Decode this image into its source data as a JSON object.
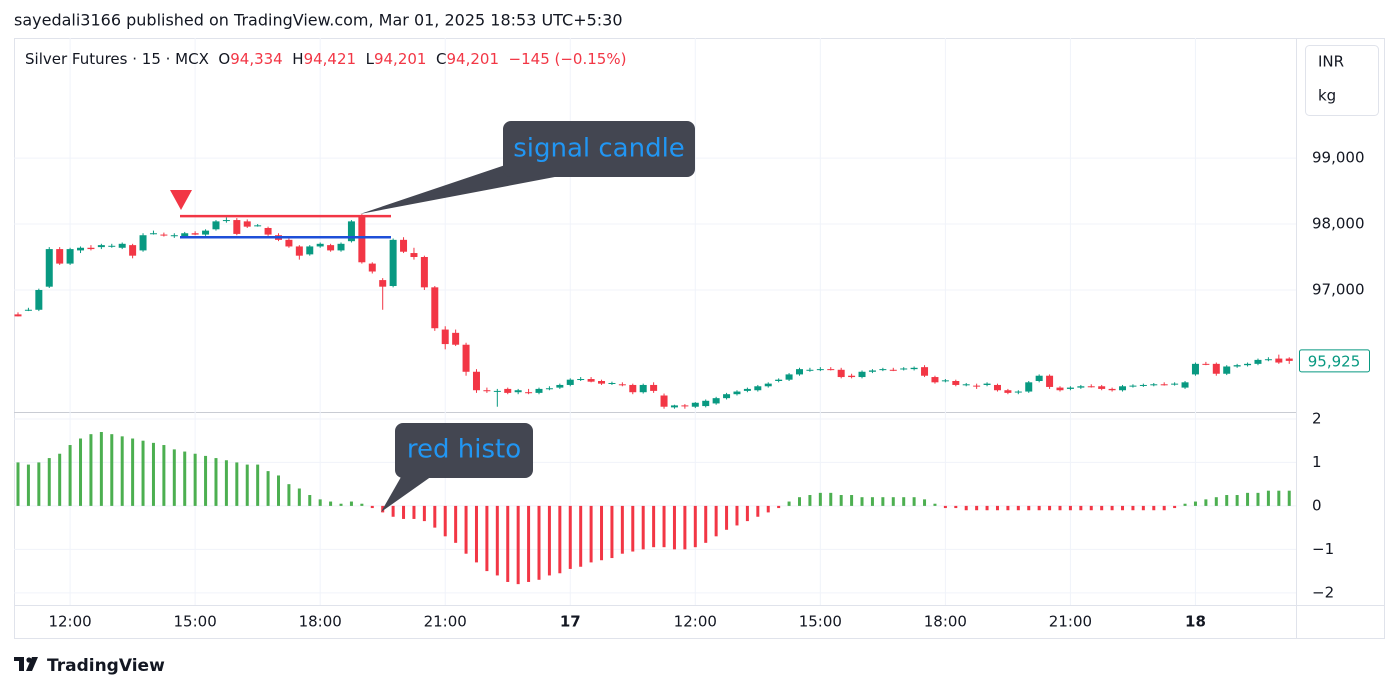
{
  "header": {
    "published": "sayedali3166 published on TradingView.com, Mar 01, 2025 18:53 UTC+5:30",
    "symbol": "Silver Futures · 15 · MCX",
    "ohlc": [
      [
        "O",
        "94,334"
      ],
      [
        "H",
        "94,421"
      ],
      [
        "L",
        "94,201"
      ],
      [
        "C",
        "94,201"
      ]
    ],
    "change": "−145 (−0.15%)"
  },
  "footer": {
    "brand": "TradingView"
  },
  "chart_data": [
    {
      "type": "candlestick",
      "up_color": "#089981",
      "down_color": "#f23645",
      "currency": "INR",
      "unit": "kg",
      "ylim": [
        95150,
        100790
      ],
      "yticks": [
        {
          "value": 97000,
          "label": "97,000"
        },
        {
          "value": 98000,
          "label": "98,000"
        },
        {
          "value": 99000,
          "label": "99,000"
        }
      ],
      "grid": true,
      "last_price": {
        "value": 95925,
        "label": "95,925"
      },
      "hlines": [
        {
          "value": 98120,
          "color": "#f23645"
        },
        {
          "value": 97800,
          "color": "#1e4fd8"
        }
      ],
      "annotations": [
        "signal candle"
      ],
      "ohlc": [
        [
          96630,
          96660,
          96600,
          96600
        ],
        [
          96700,
          96730,
          96680,
          96700
        ],
        [
          96700,
          97020,
          96680,
          97000
        ],
        [
          97050,
          97650,
          97030,
          97620
        ],
        [
          97620,
          97650,
          97380,
          97400
        ],
        [
          97400,
          97640,
          97380,
          97620
        ],
        [
          97600,
          97660,
          97560,
          97640
        ],
        [
          97640,
          97680,
          97600,
          97620
        ],
        [
          97650,
          97700,
          97620,
          97680
        ],
        [
          97660,
          97700,
          97640,
          97670
        ],
        [
          97640,
          97720,
          97620,
          97700
        ],
        [
          97680,
          97700,
          97480,
          97520
        ],
        [
          97600,
          97860,
          97580,
          97830
        ],
        [
          97850,
          97900,
          97840,
          97860
        ],
        [
          97840,
          97870,
          97810,
          97830
        ],
        [
          97820,
          97860,
          97790,
          97830
        ],
        [
          97810,
          97880,
          97790,
          97860
        ],
        [
          97860,
          97890,
          97830,
          97840
        ],
        [
          97840,
          97920,
          97820,
          97900
        ],
        [
          97920,
          98060,
          97900,
          98040
        ],
        [
          98050,
          98100,
          98020,
          98060
        ],
        [
          98060,
          98090,
          97830,
          97850
        ],
        [
          98040,
          98070,
          97940,
          97960
        ],
        [
          97980,
          98000,
          97960,
          97980
        ],
        [
          97940,
          97960,
          97820,
          97840
        ],
        [
          97830,
          97860,
          97740,
          97760
        ],
        [
          97760,
          97780,
          97640,
          97660
        ],
        [
          97660,
          97680,
          97460,
          97520
        ],
        [
          97540,
          97680,
          97520,
          97660
        ],
        [
          97660,
          97720,
          97640,
          97700
        ],
        [
          97680,
          97700,
          97580,
          97600
        ],
        [
          97600,
          97720,
          97580,
          97700
        ],
        [
          97740,
          98060,
          97720,
          98040
        ],
        [
          98120,
          98150,
          97400,
          97420
        ],
        [
          97400,
          97420,
          97250,
          97280
        ],
        [
          97150,
          97180,
          96700,
          97050
        ],
        [
          97060,
          97780,
          97040,
          97760
        ],
        [
          97760,
          97800,
          97560,
          97580
        ],
        [
          97560,
          97640,
          97460,
          97500
        ],
        [
          97500,
          97520,
          97000,
          97040
        ],
        [
          97040,
          97060,
          96380,
          96420
        ],
        [
          96400,
          96450,
          96100,
          96180
        ],
        [
          96350,
          96400,
          96150,
          96170
        ],
        [
          96170,
          96200,
          95700,
          95760
        ],
        [
          95760,
          95800,
          95440,
          95480
        ],
        [
          95480,
          95520,
          95440,
          95470
        ],
        [
          95460,
          95500,
          95230,
          95470
        ],
        [
          95500,
          95520,
          95420,
          95440
        ],
        [
          95450,
          95500,
          95420,
          95480
        ],
        [
          95450,
          95500,
          95420,
          95440
        ],
        [
          95440,
          95520,
          95420,
          95500
        ],
        [
          95500,
          95540,
          95480,
          95510
        ],
        [
          95520,
          95580,
          95500,
          95560
        ],
        [
          95560,
          95660,
          95540,
          95640
        ],
        [
          95640,
          95680,
          95620,
          95650
        ],
        [
          95650,
          95680,
          95600,
          95610
        ],
        [
          95620,
          95640,
          95560,
          95580
        ],
        [
          95580,
          95610,
          95560,
          95590
        ],
        [
          95570,
          95600,
          95540,
          95560
        ],
        [
          95560,
          95580,
          95420,
          95450
        ],
        [
          95450,
          95580,
          95430,
          95560
        ],
        [
          95560,
          95600,
          95440,
          95470
        ],
        [
          95400,
          95430,
          95200,
          95230
        ],
        [
          95220,
          95260,
          95200,
          95250
        ],
        [
          95250,
          95270,
          95200,
          95240
        ],
        [
          95230,
          95300,
          95210,
          95290
        ],
        [
          95240,
          95340,
          95220,
          95320
        ],
        [
          95280,
          95380,
          95260,
          95360
        ],
        [
          95360,
          95440,
          95340,
          95420
        ],
        [
          95420,
          95480,
          95400,
          95460
        ],
        [
          95470,
          95520,
          95450,
          95500
        ],
        [
          95480,
          95560,
          95460,
          95540
        ],
        [
          95540,
          95600,
          95520,
          95580
        ],
        [
          95620,
          95660,
          95600,
          95640
        ],
        [
          95640,
          95740,
          95620,
          95720
        ],
        [
          95720,
          95820,
          95700,
          95800
        ],
        [
          95780,
          95820,
          95760,
          95790
        ],
        [
          95790,
          95830,
          95770,
          95800
        ],
        [
          95800,
          95830,
          95780,
          95790
        ],
        [
          95790,
          95820,
          95660,
          95680
        ],
        [
          95700,
          95730,
          95660,
          95680
        ],
        [
          95680,
          95780,
          95660,
          95760
        ],
        [
          95760,
          95800,
          95740,
          95780
        ],
        [
          95790,
          95820,
          95770,
          95800
        ],
        [
          95790,
          95820,
          95770,
          95780
        ],
        [
          95800,
          95830,
          95780,
          95810
        ],
        [
          95800,
          95840,
          95780,
          95820
        ],
        [
          95830,
          95860,
          95680,
          95700
        ],
        [
          95680,
          95700,
          95580,
          95600
        ],
        [
          95620,
          95650,
          95600,
          95630
        ],
        [
          95620,
          95640,
          95540,
          95560
        ],
        [
          95560,
          95590,
          95540,
          95570
        ],
        [
          95550,
          95580,
          95500,
          95540
        ],
        [
          95560,
          95600,
          95540,
          95580
        ],
        [
          95560,
          95580,
          95460,
          95480
        ],
        [
          95480,
          95500,
          95420,
          95440
        ],
        [
          95450,
          95480,
          95420,
          95460
        ],
        [
          95460,
          95620,
          95440,
          95600
        ],
        [
          95620,
          95720,
          95600,
          95700
        ],
        [
          95700,
          95720,
          95500,
          95530
        ],
        [
          95520,
          95540,
          95460,
          95480
        ],
        [
          95500,
          95540,
          95480,
          95520
        ],
        [
          95520,
          95560,
          95500,
          95540
        ],
        [
          95540,
          95570,
          95520,
          95530
        ],
        [
          95540,
          95560,
          95480,
          95500
        ],
        [
          95500,
          95520,
          95460,
          95480
        ],
        [
          95480,
          95560,
          95460,
          95540
        ],
        [
          95540,
          95570,
          95520,
          95550
        ],
        [
          95550,
          95580,
          95530,
          95560
        ],
        [
          95560,
          95590,
          95540,
          95570
        ],
        [
          95570,
          95600,
          95550,
          95560
        ],
        [
          95570,
          95600,
          95550,
          95580
        ],
        [
          95520,
          95620,
          95500,
          95600
        ],
        [
          95720,
          95900,
          95700,
          95880
        ],
        [
          95880,
          95910,
          95860,
          95870
        ],
        [
          95880,
          95900,
          95700,
          95730
        ],
        [
          95730,
          95860,
          95710,
          95840
        ],
        [
          95840,
          95880,
          95820,
          95860
        ],
        [
          95860,
          95900,
          95840,
          95880
        ],
        [
          95880,
          95960,
          95860,
          95940
        ],
        [
          95940,
          95980,
          95920,
          95950
        ],
        [
          95960,
          96020,
          95880,
          95900
        ],
        [
          95960,
          95980,
          95880,
          95925
        ]
      ]
    },
    {
      "type": "bar",
      "positive_color": "#4caf50",
      "negative_color": "#f23645",
      "ylim": [
        -2.28,
        2.16
      ],
      "yticks": [
        2,
        1,
        0,
        {
          "value": -1,
          "label": "−1"
        },
        {
          "value": -2,
          "label": "−2"
        }
      ],
      "grid": true,
      "annotations": [
        "red histo"
      ],
      "categories": [
        null,
        null,
        null,
        null,
        null,
        "12:00",
        null,
        null,
        null,
        null,
        null,
        null,
        null,
        null,
        null,
        null,
        null,
        "15:00",
        null,
        null,
        null,
        null,
        null,
        null,
        null,
        null,
        null,
        null,
        null,
        "18:00",
        null,
        null,
        null,
        null,
        null,
        null,
        null,
        null,
        null,
        null,
        null,
        "21:00",
        null,
        null,
        null,
        null,
        null,
        null,
        null,
        null,
        null,
        null,
        null,
        "17",
        null,
        null,
        null,
        null,
        null,
        null,
        null,
        null,
        null,
        null,
        null,
        "12:00",
        null,
        null,
        null,
        null,
        null,
        null,
        null,
        null,
        null,
        null,
        null,
        "15:00",
        null,
        null,
        null,
        null,
        null,
        null,
        null,
        null,
        null,
        null,
        null,
        "18:00",
        null,
        null,
        null,
        null,
        null,
        null,
        null,
        null,
        null,
        null,
        null,
        "21:00",
        null,
        null,
        null,
        null,
        null,
        null,
        null,
        null,
        null,
        null,
        null,
        "18",
        null,
        null,
        null,
        null,
        null,
        null,
        null,
        null,
        null
      ],
      "values": [
        1.0,
        0.95,
        1.0,
        1.1,
        1.2,
        1.4,
        1.55,
        1.65,
        1.7,
        1.65,
        1.6,
        1.55,
        1.5,
        1.45,
        1.4,
        1.3,
        1.25,
        1.2,
        1.15,
        1.1,
        1.05,
        1.0,
        0.95,
        0.95,
        0.8,
        0.7,
        0.5,
        0.4,
        0.25,
        0.15,
        0.1,
        0.05,
        0.1,
        0.05,
        -0.05,
        -0.15,
        -0.25,
        -0.3,
        -0.3,
        -0.35,
        -0.5,
        -0.7,
        -0.85,
        -1.1,
        -1.3,
        -1.5,
        -1.6,
        -1.75,
        -1.8,
        -1.75,
        -1.7,
        -1.6,
        -1.55,
        -1.45,
        -1.4,
        -1.3,
        -1.25,
        -1.2,
        -1.1,
        -1.05,
        -1.0,
        -0.95,
        -0.95,
        -1.0,
        -1.0,
        -0.95,
        -0.85,
        -0.7,
        -0.55,
        -0.45,
        -0.35,
        -0.25,
        -0.15,
        -0.05,
        0.1,
        0.2,
        0.25,
        0.3,
        0.3,
        0.25,
        0.25,
        0.2,
        0.2,
        0.2,
        0.2,
        0.2,
        0.2,
        0.15,
        0.05,
        -0.05,
        -0.05,
        -0.1,
        -0.1,
        -0.1,
        -0.1,
        -0.1,
        -0.1,
        -0.1,
        -0.1,
        -0.1,
        -0.1,
        -0.1,
        -0.1,
        -0.1,
        -0.1,
        -0.1,
        -0.1,
        -0.1,
        -0.1,
        -0.1,
        -0.1,
        -0.05,
        0.05,
        0.1,
        0.15,
        0.2,
        0.25,
        0.25,
        0.3,
        0.3,
        0.35,
        0.35,
        0.35
      ]
    }
  ]
}
